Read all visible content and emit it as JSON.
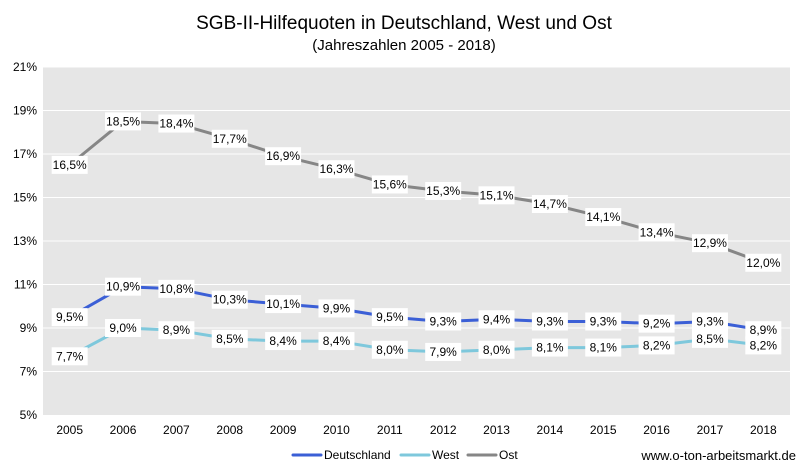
{
  "chart_data": {
    "type": "line",
    "title": "SGB-II-Hilfequoten in Deutschland, West und Ost",
    "subtitle": "(Jahreszahlen  2005 - 2018)",
    "x": [
      "2005",
      "2006",
      "2007",
      "2008",
      "2009",
      "2010",
      "2011",
      "2012",
      "2013",
      "2014",
      "2015",
      "2016",
      "2017",
      "2018"
    ],
    "ylim": [
      5,
      21
    ],
    "yticks": [
      5,
      7,
      9,
      11,
      13,
      15,
      17,
      19,
      21
    ],
    "ytick_labels": [
      "5%",
      "7%",
      "9%",
      "11%",
      "13%",
      "15%",
      "17%",
      "19%",
      "21%"
    ],
    "grid": "horizontal",
    "legend_position": "bottom",
    "series": [
      {
        "name": "Deutschland",
        "color": "#3b5fd6",
        "values": [
          9.5,
          10.9,
          10.8,
          10.3,
          10.1,
          9.9,
          9.5,
          9.3,
          9.4,
          9.3,
          9.3,
          9.2,
          9.3,
          8.9
        ],
        "labels": [
          "9,5%",
          "10,9%",
          "10,8%",
          "10,3%",
          "10,1%",
          "9,9%",
          "9,5%",
          "9,3%",
          "9,4%",
          "9,3%",
          "9,3%",
          "9,2%",
          "9,3%",
          "8,9%"
        ]
      },
      {
        "name": "West",
        "color": "#7ec8dc",
        "values": [
          7.7,
          9.0,
          8.9,
          8.5,
          8.4,
          8.4,
          8.0,
          7.9,
          8.0,
          8.1,
          8.1,
          8.2,
          8.5,
          8.2
        ],
        "labels": [
          "7,7%",
          "9,0%",
          "8,9%",
          "8,5%",
          "8,4%",
          "8,4%",
          "8,0%",
          "7,9%",
          "8,0%",
          "8,1%",
          "8,1%",
          "8,2%",
          "8,5%",
          "8,2%"
        ]
      },
      {
        "name": "Ost",
        "color": "#868686",
        "values": [
          16.5,
          18.5,
          18.4,
          17.7,
          16.9,
          16.3,
          15.6,
          15.3,
          15.1,
          14.7,
          14.1,
          13.4,
          12.9,
          12.0
        ],
        "labels": [
          "16,5%",
          "18,5%",
          "18,4%",
          "17,7%",
          "16,9%",
          "16,3%",
          "15,6%",
          "15,3%",
          "15,1%",
          "14,7%",
          "14,1%",
          "13,4%",
          "12,9%",
          "12,0%"
        ]
      }
    ]
  },
  "source": "www.o-ton-arbeitsmarkt.de",
  "colors": {
    "plot_background": "#e6e6e6",
    "gridline": "#ffffff"
  }
}
